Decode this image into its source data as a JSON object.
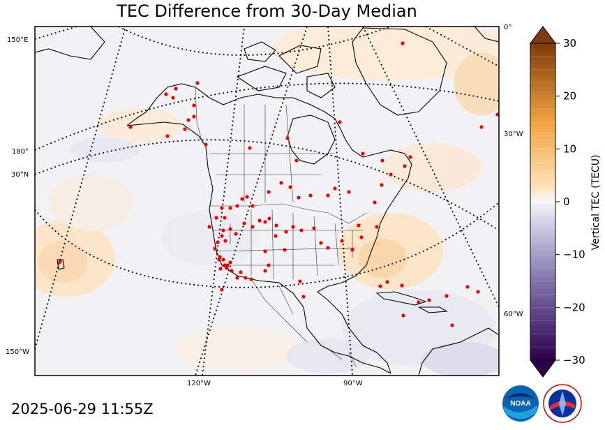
{
  "title": "TEC Difference from 30-Day Median",
  "timestamp": "2025-06-29 11:55Z",
  "map_labels": {
    "left": [
      "150°E",
      "180°",
      "30°N",
      "150°W"
    ],
    "right": [
      "0°",
      "30°W",
      "60°W"
    ],
    "bottom": [
      "120°W",
      "90°W"
    ]
  },
  "colorbar": {
    "label": "Vertical TEC (TECU)",
    "min": -30,
    "max": 30,
    "ticks": [
      "30",
      "20",
      "10",
      "0",
      "−10",
      "−20",
      "−30"
    ],
    "colors": {
      "negative_end": "#2d004b",
      "neutral": "#f7f7f7",
      "positive_end": "#7f3b08"
    }
  },
  "map_style": {
    "background": "#f3f3f5",
    "station_color": "#ee0000",
    "graticule": "dotted black"
  },
  "logos": [
    "noaa-logo",
    "national-weather-service-logo"
  ],
  "logo_text": [
    "NOAA",
    "NATIONAL WEATHER SERVICE"
  ]
}
